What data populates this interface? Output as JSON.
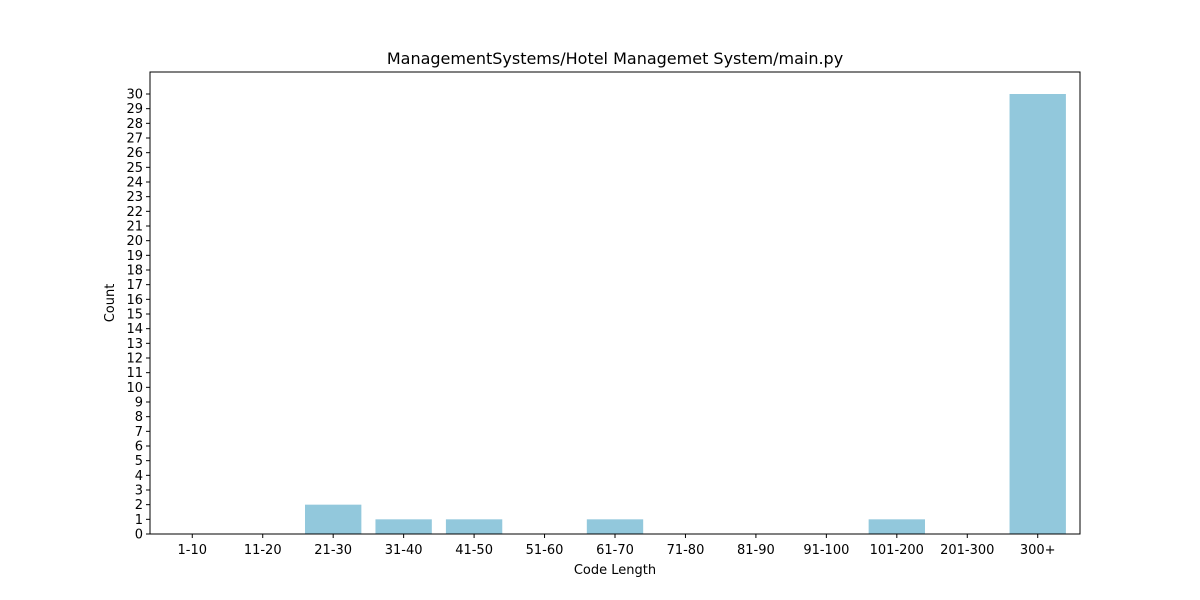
{
  "chart_data": {
    "type": "bar",
    "title": "ManagementSystems/Hotel Managemet System/main.py",
    "xlabel": "Code Length",
    "ylabel": "Count",
    "categories": [
      "1-10",
      "11-20",
      "21-30",
      "31-40",
      "41-50",
      "51-60",
      "61-70",
      "71-80",
      "81-90",
      "91-100",
      "101-200",
      "201-300",
      "300+"
    ],
    "values": [
      0,
      0,
      2,
      1,
      1,
      0,
      1,
      0,
      0,
      0,
      1,
      0,
      30
    ],
    "ylim": [
      0,
      31.5
    ],
    "yticks": [
      0,
      1,
      2,
      3,
      4,
      5,
      6,
      7,
      8,
      9,
      10,
      11,
      12,
      13,
      14,
      15,
      16,
      17,
      18,
      19,
      20,
      21,
      22,
      23,
      24,
      25,
      26,
      27,
      28,
      29,
      30
    ],
    "bar_color": "#92c8dc",
    "grid": false,
    "legend": "none"
  }
}
